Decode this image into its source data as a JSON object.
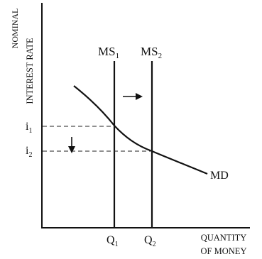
{
  "chart_data": {
    "type": "diagram",
    "title": "",
    "ylabel_line1": "NOMINAL",
    "ylabel_line2": "INTEREST RATE",
    "xlabel_line1": "QUANTITY",
    "xlabel_line2": "OF MONEY",
    "supply_curves": [
      {
        "label": "MS",
        "subscript": "1"
      },
      {
        "label": "MS",
        "subscript": "2"
      }
    ],
    "demand_curve": {
      "label": "MD",
      "shape": "downward-sloping"
    },
    "x_ticks": [
      {
        "label": "Q",
        "subscript": "1"
      },
      {
        "label": "Q",
        "subscript": "2"
      }
    ],
    "y_ticks": [
      {
        "label": "i",
        "subscript": "1"
      },
      {
        "label": "i",
        "subscript": "2"
      }
    ],
    "arrows": [
      {
        "meaning": "money supply shifts right",
        "direction": "right"
      },
      {
        "meaning": "interest rate falls",
        "direction": "down"
      }
    ],
    "grid": false
  }
}
